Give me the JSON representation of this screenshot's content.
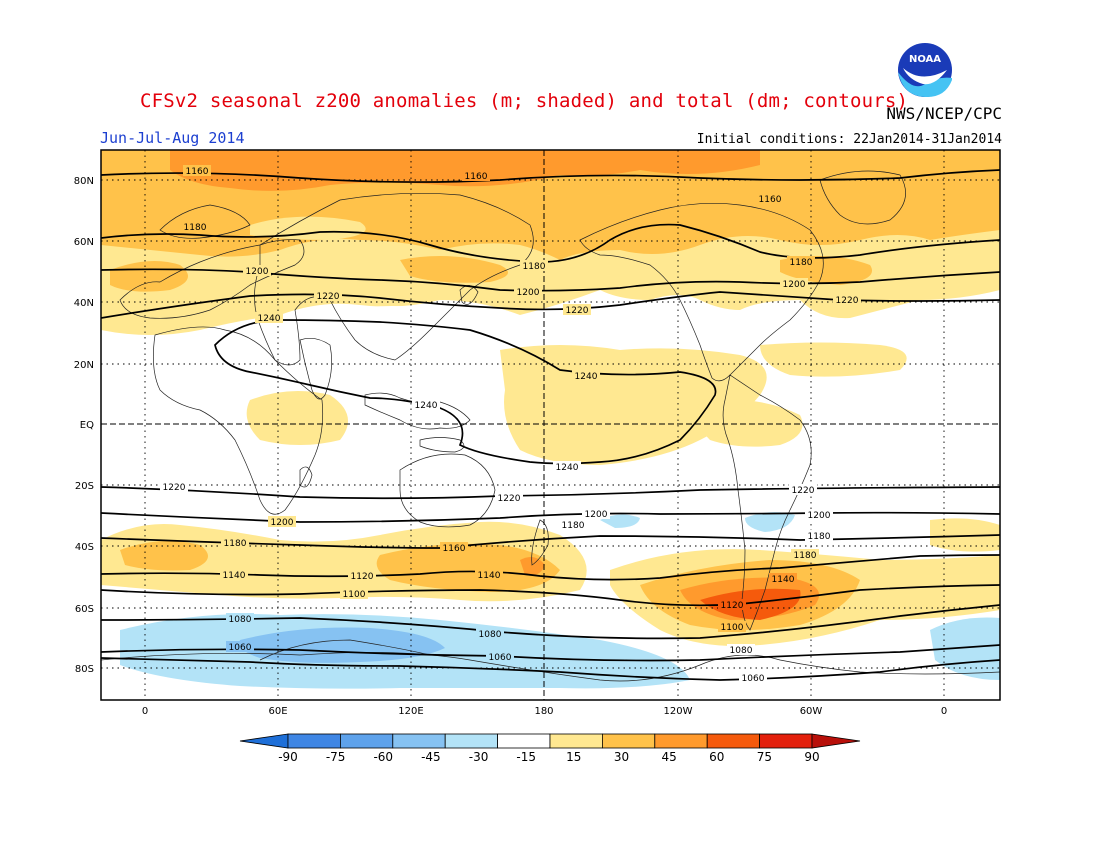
{
  "header": {
    "title": "CFSv2 seasonal z200 anomalies (m; shaded) and total (dm; contours)",
    "period": "Jun-Jul-Aug 2014",
    "agency": "NWS/NCEP/CPC",
    "initial_conditions": "Initial conditions: 22Jan2014-31Jan2014",
    "logo_text": "NOAA"
  },
  "map": {
    "lat_labels": [
      "80N",
      "60N",
      "40N",
      "20N",
      "EQ",
      "20S",
      "40S",
      "60S",
      "80S"
    ],
    "lon_labels": [
      "0",
      "60E",
      "120E",
      "180",
      "120W",
      "60W",
      "0"
    ],
    "contour_labels_dm": [
      "1240",
      "1220",
      "1200",
      "1180",
      "1160",
      "1140",
      "1120",
      "1100",
      "1080",
      "1060"
    ]
  },
  "colorbar": {
    "ticks": [
      "-90",
      "-75",
      "-60",
      "-45",
      "-30",
      "-15",
      "15",
      "30",
      "45",
      "60",
      "75",
      "90"
    ],
    "colors": [
      "#1e6fd8",
      "#3f86e4",
      "#5ea2eb",
      "#86c2f2",
      "#b3e3f7",
      "#ffffff",
      "#ffe891",
      "#ffc24a",
      "#ff9a2d",
      "#f55a0c",
      "#e3200c",
      "#b8100a"
    ]
  },
  "colors": {
    "c30": "#ffe891",
    "c45": "#ffc24a",
    "c60": "#ff9a2d",
    "c75": "#f55a0c",
    "cneg30": "#b3e3f7",
    "cneg45": "#86c2f2"
  }
}
